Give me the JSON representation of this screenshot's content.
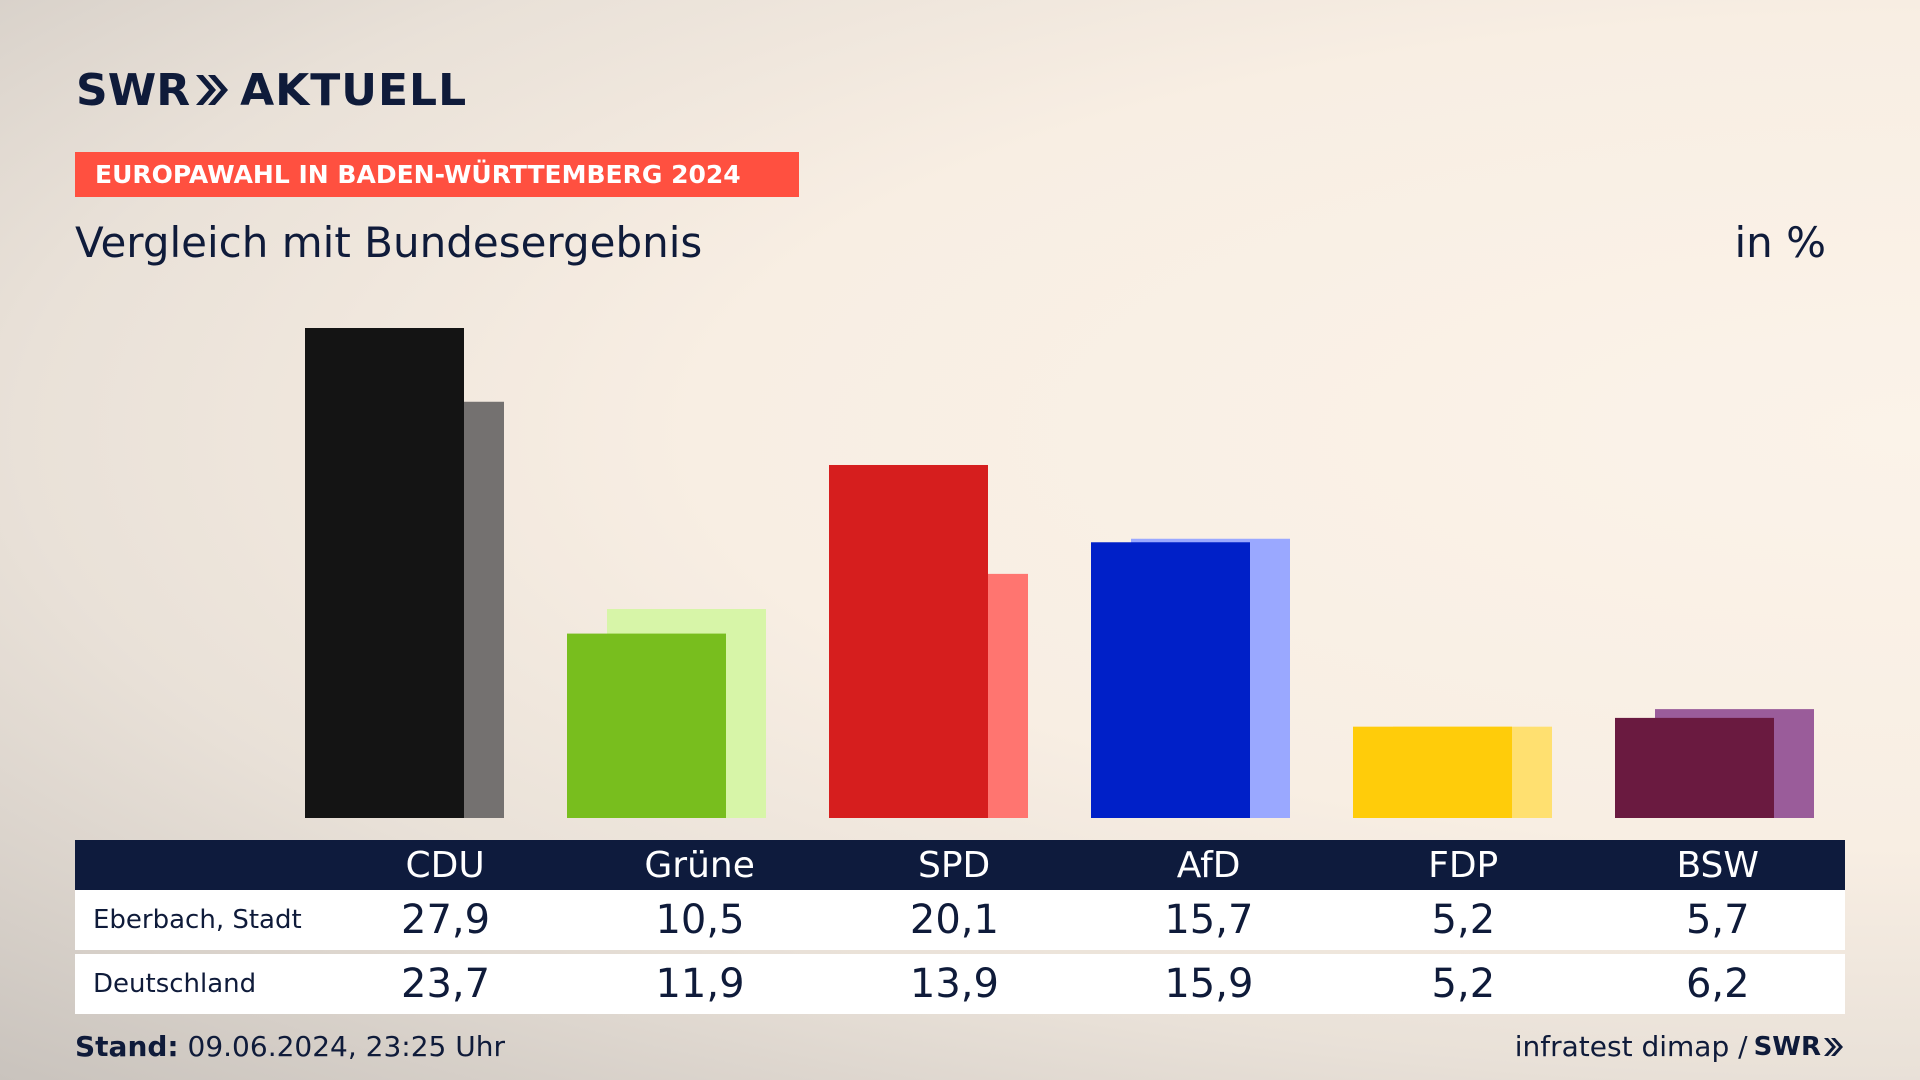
{
  "brand": {
    "name": "SWR",
    "product": "AKTUELL",
    "dark_color": "#0f1b3a",
    "accent": "#ff5040"
  },
  "header": {
    "banner": "EUROPAWAHL IN BADEN-WÜRTTEMBERG 2024",
    "subtitle": "Vergleich mit Bundesergebnis",
    "unit": "in %"
  },
  "table": {
    "rows": [
      {
        "label": "Eberbach, Stadt",
        "values": [
          "27,9",
          "10,5",
          "20,1",
          "15,7",
          "5,2",
          "5,7"
        ]
      },
      {
        "label": "Deutschland",
        "values": [
          "23,7",
          "11,9",
          "13,9",
          "15,9",
          "5,2",
          "6,2"
        ]
      }
    ]
  },
  "footer": {
    "stand_label": "Stand:",
    "stand_value": "09.06.2024, 23:25 Uhr",
    "source": "infratest dimap",
    "separator": "/",
    "source_brand": "SWR"
  },
  "chart_data": {
    "type": "bar",
    "categories": [
      "CDU",
      "Grüne",
      "SPD",
      "AfD",
      "FDP",
      "BSW"
    ],
    "series": [
      {
        "name": "Eberbach, Stadt",
        "values": [
          27.9,
          10.5,
          20.1,
          15.7,
          5.2,
          5.7
        ],
        "colors": [
          "#141414",
          "#78be1e",
          "#d61e1e",
          "#0020c8",
          "#ffcc0a",
          "#6a1a40"
        ]
      },
      {
        "name": "Deutschland",
        "values": [
          23.7,
          11.9,
          13.9,
          15.9,
          5.2,
          6.2
        ],
        "colors": [
          "#747170",
          "#d7f5a8",
          "#ff7570",
          "#9aa8ff",
          "#ffe070",
          "#9a5c9a"
        ]
      }
    ],
    "ylim": [
      0,
      27.9
    ],
    "grid": false,
    "legend": "table-below"
  }
}
